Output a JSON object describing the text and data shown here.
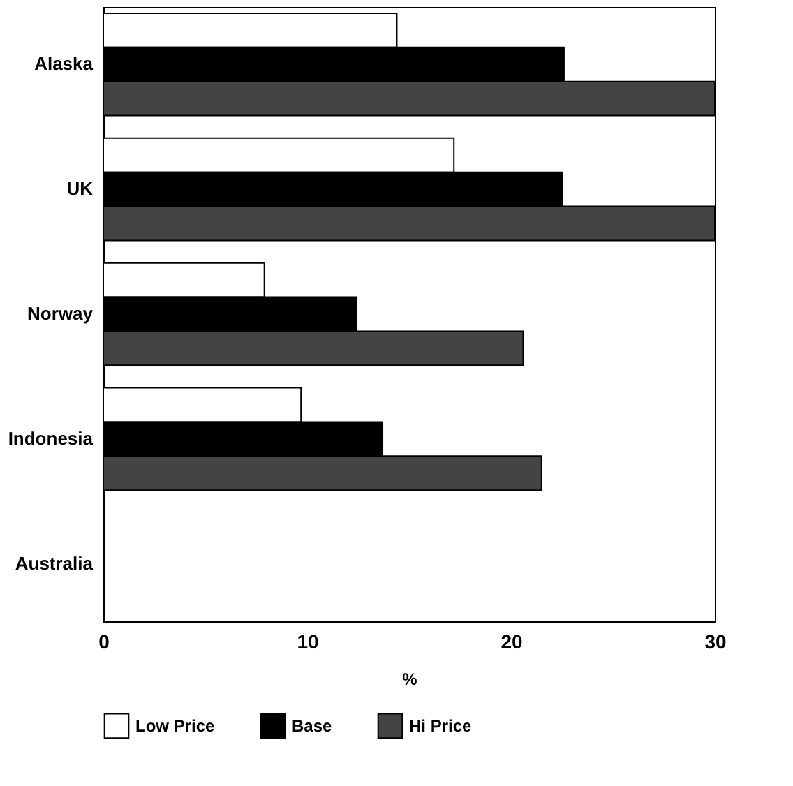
{
  "chart_data": {
    "type": "bar",
    "orientation": "horizontal",
    "xlabel": "%",
    "categories": [
      "Alaska",
      "UK",
      "Norway",
      "Indonesia",
      "Australia"
    ],
    "series": [
      {
        "name": "Low Price",
        "color": "#ffffff",
        "values": [
          14.4,
          17.2,
          7.9,
          9.7,
          null
        ]
      },
      {
        "name": "Base",
        "color": "#000000",
        "values": [
          22.6,
          22.5,
          12.4,
          13.7,
          null
        ]
      },
      {
        "name": "Hi Price",
        "color": "#444444",
        "values": [
          30,
          30,
          20.6,
          21.5,
          null
        ]
      }
    ],
    "xlim": [
      0,
      30
    ],
    "xticks": [
      0,
      10,
      20,
      30
    ],
    "grid": false,
    "legend": "bottom"
  }
}
